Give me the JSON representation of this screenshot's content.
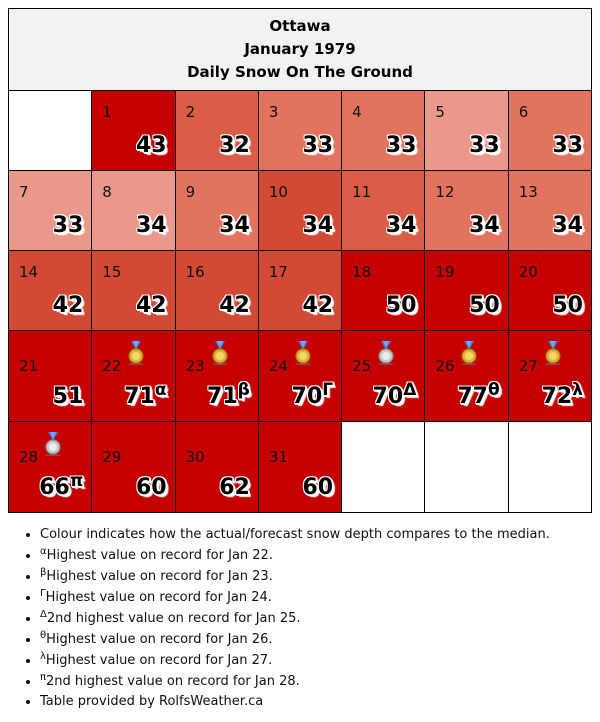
{
  "title": {
    "city": "Ottawa",
    "month": "January 1979",
    "subtitle": "Daily Snow On The Ground"
  },
  "colors": {
    "record_red": "#c40000",
    "dark": "#d24a36",
    "mid": "#da5d47",
    "light": "#e2735e",
    "pale": "#e9988a"
  },
  "days": [
    {
      "day": "1",
      "value": "43",
      "sup": ""
    },
    {
      "day": "2",
      "value": "32",
      "sup": ""
    },
    {
      "day": "3",
      "value": "33",
      "sup": ""
    },
    {
      "day": "4",
      "value": "33",
      "sup": ""
    },
    {
      "day": "5",
      "value": "33",
      "sup": ""
    },
    {
      "day": "6",
      "value": "33",
      "sup": ""
    },
    {
      "day": "7",
      "value": "33",
      "sup": ""
    },
    {
      "day": "8",
      "value": "34",
      "sup": ""
    },
    {
      "day": "9",
      "value": "34",
      "sup": ""
    },
    {
      "day": "10",
      "value": "34",
      "sup": ""
    },
    {
      "day": "11",
      "value": "34",
      "sup": ""
    },
    {
      "day": "12",
      "value": "34",
      "sup": ""
    },
    {
      "day": "13",
      "value": "34",
      "sup": ""
    },
    {
      "day": "14",
      "value": "42",
      "sup": ""
    },
    {
      "day": "15",
      "value": "42",
      "sup": ""
    },
    {
      "day": "16",
      "value": "42",
      "sup": ""
    },
    {
      "day": "17",
      "value": "42",
      "sup": ""
    },
    {
      "day": "18",
      "value": "50",
      "sup": ""
    },
    {
      "day": "19",
      "value": "50",
      "sup": ""
    },
    {
      "day": "20",
      "value": "50",
      "sup": ""
    },
    {
      "day": "21",
      "value": "51",
      "sup": ""
    },
    {
      "day": "22",
      "value": "71",
      "sup": "α",
      "medal": "gold-medal-icon"
    },
    {
      "day": "23",
      "value": "71",
      "sup": "β",
      "medal": "gold-medal-icon"
    },
    {
      "day": "24",
      "value": "70",
      "sup": "Γ",
      "medal": "gold-medal-icon"
    },
    {
      "day": "25",
      "value": "70",
      "sup": "Δ",
      "medal": "silver-medal-icon"
    },
    {
      "day": "26",
      "value": "77",
      "sup": "θ",
      "medal": "gold-medal-icon"
    },
    {
      "day": "27",
      "value": "72",
      "sup": "λ",
      "medal": "gold-medal-icon"
    },
    {
      "day": "28",
      "value": "66",
      "sup": "π",
      "medal": "silver-medal-icon"
    },
    {
      "day": "29",
      "value": "60",
      "sup": ""
    },
    {
      "day": "30",
      "value": "62",
      "sup": ""
    },
    {
      "day": "31",
      "value": "60",
      "sup": ""
    }
  ],
  "notes": [
    {
      "sym": "",
      "text": "Colour indicates how the actual/forecast snow depth compares to the median."
    },
    {
      "sym": "α",
      "text": "Highest value on record for Jan 22."
    },
    {
      "sym": "β",
      "text": "Highest value on record for Jan 23."
    },
    {
      "sym": "Γ",
      "text": "Highest value on record for Jan 24."
    },
    {
      "sym": "Δ",
      "text": "2nd highest value on record for Jan 25."
    },
    {
      "sym": "θ",
      "text": "Highest value on record for Jan 26."
    },
    {
      "sym": "λ",
      "text": "Highest value on record for Jan 27."
    },
    {
      "sym": "π",
      "text": "2nd highest value on record for Jan 28."
    },
    {
      "sym": "",
      "text": "Table provided by RolfsWeather.ca"
    }
  ]
}
